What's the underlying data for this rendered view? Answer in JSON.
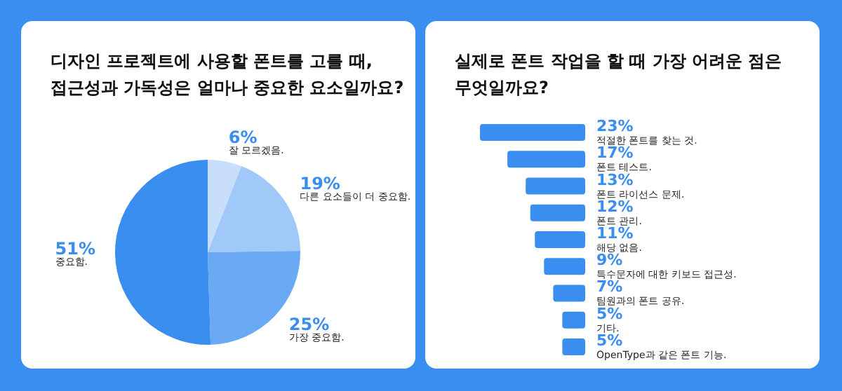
{
  "chart_data": [
    {
      "type": "pie",
      "title": "디자인 프로젝트에 사용할 폰트를 고를 때,\n접근성과 가독성은 얼마나 중요한 요소일까요?",
      "categories": [
        "잘 모르겠음.",
        "다른 요소들이 더 중요함.",
        "가장 중요함.",
        "중요함."
      ],
      "values": [
        6,
        19,
        25,
        51
      ],
      "colors": [
        "#c9defb",
        "#a0c8f8",
        "#6aaaf5",
        "#3a8ef0"
      ],
      "value_labels": [
        "6%",
        "19%",
        "25%",
        "51%"
      ],
      "legend": false
    },
    {
      "type": "bar",
      "orientation": "horizontal",
      "title": "실제로 폰트 작업을 할 때 가장 어려운 점은\n무엇일까요?",
      "categories": [
        "적절한 폰트를 찾는 것.",
        "폰트 테스트.",
        "폰트 라이선스 문제.",
        "폰트 관리.",
        "해당 없음.",
        "특수문자에 대한 키보드 접근성.",
        "팀원과의 폰트 공유.",
        "기타.",
        "OpenType과 같은 폰트 기능."
      ],
      "values": [
        23,
        17,
        13,
        12,
        11,
        9,
        7,
        5,
        5
      ],
      "color": "#3a8ef0",
      "value_labels": [
        "23%",
        "17%",
        "13%",
        "12%",
        "11%",
        "9%",
        "7%",
        "5%",
        "5%"
      ],
      "legend": false
    }
  ]
}
